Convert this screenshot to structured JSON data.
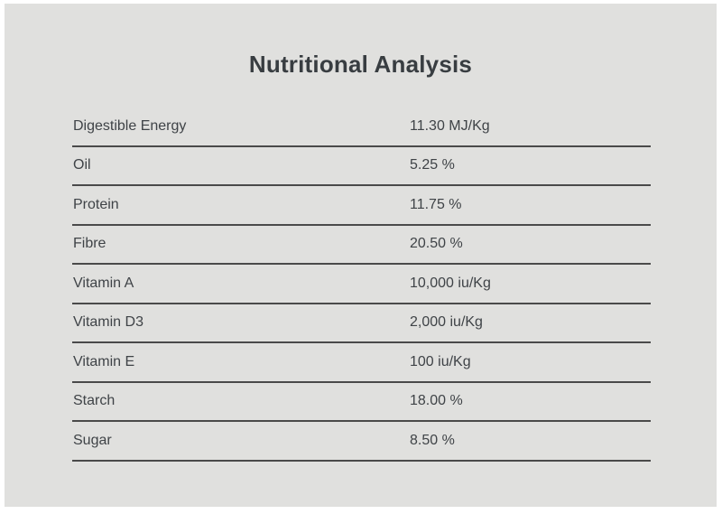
{
  "title": "Nutritional Analysis",
  "table": {
    "rows": [
      {
        "label": "Digestible Energy",
        "value": "11.30 MJ/Kg"
      },
      {
        "label": "Oil",
        "value": "5.25 %"
      },
      {
        "label": "Protein",
        "value": "11.75 %"
      },
      {
        "label": "Fibre",
        "value": "20.50 %"
      },
      {
        "label": "Vitamin A",
        "value": "10,000 iu/Kg"
      },
      {
        "label": "Vitamin D3",
        "value": "2,000 iu/Kg"
      },
      {
        "label": "Vitamin E",
        "value": "100 iu/Kg"
      },
      {
        "label": "Starch",
        "value": "18.00 %"
      },
      {
        "label": "Sugar",
        "value": "8.50 %"
      }
    ]
  },
  "colors": {
    "panel_background": "#e0e0de",
    "outer_border": "#ffffff",
    "text": "#3f4347",
    "title_text": "#383d41",
    "divider_line": "#4a4a4a"
  }
}
